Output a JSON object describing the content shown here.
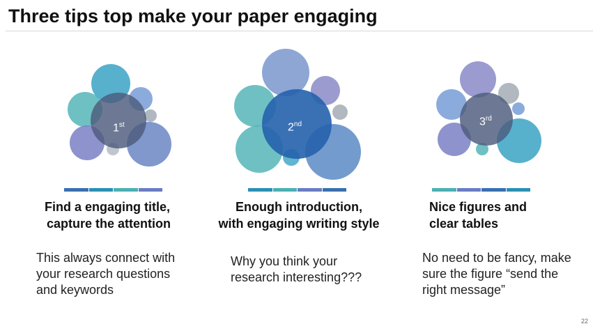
{
  "slide": {
    "title": "Three tips top make your paper engaging",
    "page_number": "22",
    "colors": {
      "teal": "#4bb0b4",
      "blue": "#3a7fc0",
      "purple": "#7a7fc4",
      "gray": "#9ea6b0",
      "navy_center": "#2a63b0",
      "dark_center": "#4a5c78"
    },
    "tips": [
      {
        "rank_num": "1",
        "rank_suffix": "st",
        "heading_line1": "Find a engaging title,",
        "heading_line2": "capture the attention",
        "body_line1": "This always connect with",
        "body_line2": "your research questions",
        "body_line3": "and keywords"
      },
      {
        "rank_num": "2",
        "rank_suffix": "nd",
        "heading_line1": "Enough introduction,",
        "heading_line2": "with engaging writing style",
        "body_line1": "Why you think your",
        "body_line2": "research interesting???"
      },
      {
        "rank_num": "3",
        "rank_suffix": "rd",
        "heading_line1": "Nice figures and",
        "heading_line2": "clear tables",
        "body_line1": "No need to be fancy, make",
        "body_line2": "sure the figure “send the",
        "body_line3": "right message”"
      }
    ]
  }
}
